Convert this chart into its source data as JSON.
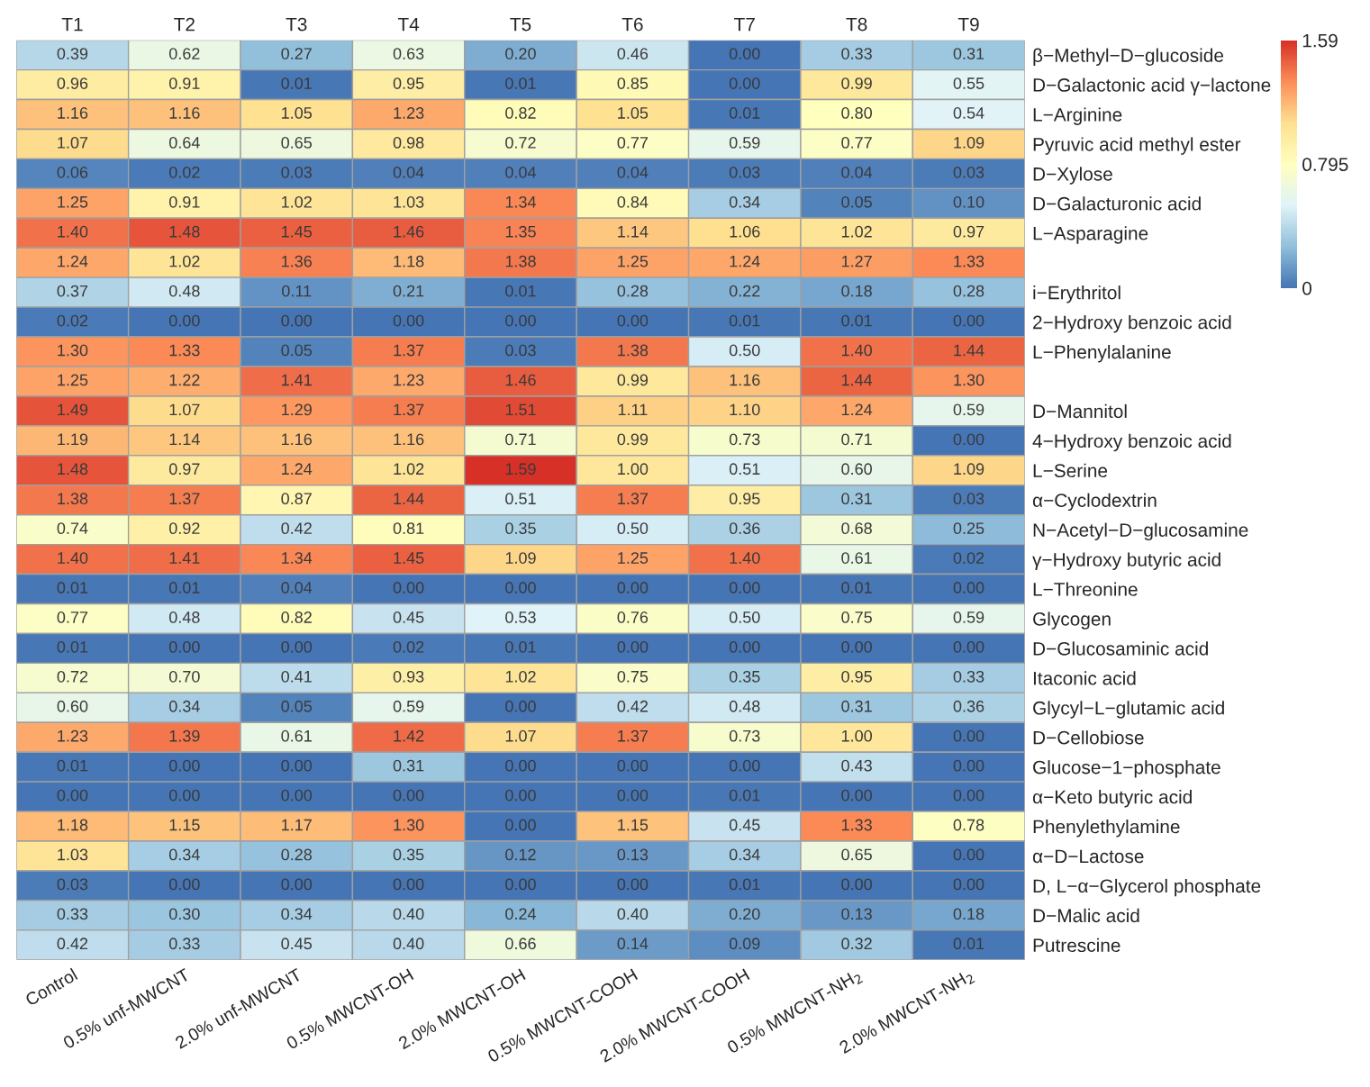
{
  "chart_data": {
    "type": "heatmap",
    "categories": [
      "Control",
      "0.5% unf-MWCNT",
      "2.0% unf-MWCNT",
      "0.5% MWCNT-OH",
      "2.0% MWCNT-OH",
      "0.5% MWCNT-COOH",
      "2.0% MWCNT-COOH",
      "0.5% MWCNT-NH$_{2}$",
      "2.0% MWCNT-NH$_{2}$"
    ],
    "annotations": [
      "T1",
      "T2",
      "T3",
      "T4",
      "T5",
      "T6",
      "T7",
      "T8",
      "T9"
    ],
    "y_categories": [
      "β−Methyl−D−glucoside",
      "D−Galactonic acid γ−lactone",
      "L−Arginine",
      "Pyruvic acid methyl ester",
      "D−Xylose",
      "D−Galacturonic acid",
      "L−Asparagine",
      null,
      "i−Erythritol",
      "2−Hydroxy benzoic acid",
      "L−Phenylalanine",
      null,
      "D−Mannitol",
      "4−Hydroxy benzoic acid",
      "L−Serine",
      "α−Cyclodextrin",
      "N−Acetyl−D−glucosamine",
      "γ−Hydroxy butyric acid",
      "L−Threonine",
      "Glycogen",
      "D−Glucosaminic acid",
      "Itaconic acid",
      "Glycyl−L−glutamic acid",
      "D−Cellobiose",
      "Glucose−1−phosphate",
      "α−Keto butyric acid",
      "Phenylethylamine",
      "α−D−Lactose",
      "D, L−α−Glycerol phosphate",
      "D−Malic acid",
      "Putrescine"
    ],
    "cells": [
      [
        0.39,
        0.62,
        0.27,
        0.63,
        0.2,
        0.46,
        0.0,
        0.33,
        0.31
      ],
      [
        0.96,
        0.91,
        0.01,
        0.95,
        0.01,
        0.85,
        0.0,
        0.99,
        0.55
      ],
      [
        1.16,
        1.16,
        1.05,
        1.23,
        0.82,
        1.05,
        0.01,
        0.8,
        0.54
      ],
      [
        1.07,
        0.64,
        0.65,
        0.98,
        0.72,
        0.77,
        0.59,
        0.77,
        1.09
      ],
      [
        0.06,
        0.02,
        0.03,
        0.04,
        0.04,
        0.04,
        0.03,
        0.04,
        0.03
      ],
      [
        1.25,
        0.91,
        1.02,
        1.03,
        1.34,
        0.84,
        0.34,
        0.05,
        0.1
      ],
      [
        1.4,
        1.48,
        1.45,
        1.46,
        1.35,
        1.14,
        1.06,
        1.02,
        0.97
      ],
      [
        1.24,
        1.02,
        1.36,
        1.18,
        1.38,
        1.25,
        1.24,
        1.27,
        1.33
      ],
      [
        0.37,
        0.48,
        0.11,
        0.21,
        0.01,
        0.28,
        0.22,
        0.18,
        0.28
      ],
      [
        0.02,
        0.0,
        0.0,
        0.0,
        0.0,
        0.0,
        0.01,
        0.01,
        0.0
      ],
      [
        1.3,
        1.33,
        0.05,
        1.37,
        0.03,
        1.38,
        0.5,
        1.4,
        1.44
      ],
      [
        1.25,
        1.22,
        1.41,
        1.23,
        1.46,
        0.99,
        1.16,
        1.44,
        1.3
      ],
      [
        1.49,
        1.07,
        1.29,
        1.37,
        1.51,
        1.11,
        1.1,
        1.24,
        0.59
      ],
      [
        1.19,
        1.14,
        1.16,
        1.16,
        0.71,
        0.99,
        0.73,
        0.71,
        0.0
      ],
      [
        1.48,
        0.97,
        1.24,
        1.02,
        1.59,
        1.0,
        0.51,
        0.6,
        1.09
      ],
      [
        1.38,
        1.37,
        0.87,
        1.44,
        0.51,
        1.37,
        0.95,
        0.31,
        0.03
      ],
      [
        0.74,
        0.92,
        0.42,
        0.81,
        0.35,
        0.5,
        0.36,
        0.68,
        0.25
      ],
      [
        1.4,
        1.41,
        1.34,
        1.45,
        1.09,
        1.25,
        1.4,
        0.61,
        0.02
      ],
      [
        0.01,
        0.01,
        0.04,
        0.0,
        0.0,
        0.0,
        0.0,
        0.01,
        0.0
      ],
      [
        0.77,
        0.48,
        0.82,
        0.45,
        0.53,
        0.76,
        0.5,
        0.75,
        0.59
      ],
      [
        0.01,
        0.0,
        0.0,
        0.02,
        0.01,
        0.0,
        0.0,
        0.0,
        0.0
      ],
      [
        0.72,
        0.7,
        0.41,
        0.93,
        1.02,
        0.75,
        0.35,
        0.95,
        0.33
      ],
      [
        0.6,
        0.34,
        0.05,
        0.59,
        0.0,
        0.42,
        0.48,
        0.31,
        0.36
      ],
      [
        1.23,
        1.39,
        0.61,
        1.42,
        1.07,
        1.37,
        0.73,
        1.0,
        0.0
      ],
      [
        0.01,
        0.0,
        0.0,
        0.31,
        0.0,
        0.0,
        0.0,
        0.43,
        0.0
      ],
      [
        0.0,
        0.0,
        0.0,
        0.0,
        0.0,
        0.0,
        0.01,
        0.0,
        0.0
      ],
      [
        1.18,
        1.15,
        1.17,
        1.3,
        0.0,
        1.15,
        0.45,
        1.33,
        0.78
      ],
      [
        1.03,
        0.34,
        0.28,
        0.35,
        0.12,
        0.13,
        0.34,
        0.65,
        0.0
      ],
      [
        0.03,
        0.0,
        0.0,
        0.0,
        0.0,
        0.0,
        0.01,
        0.0,
        0.0
      ],
      [
        0.33,
        0.3,
        0.34,
        0.4,
        0.24,
        0.4,
        0.2,
        0.13,
        0.18
      ],
      [
        0.42,
        0.33,
        0.45,
        0.4,
        0.66,
        0.14,
        0.09,
        0.32,
        0.01
      ]
    ],
    "cell_labels": [
      [
        "0.39",
        "0.62",
        "0.27",
        "0.63",
        "0.20",
        "0.46",
        "0.00",
        "0.33",
        "0.31"
      ],
      [
        "0.96",
        "0.91",
        "0.01",
        "0.95",
        "0.01",
        "0.85",
        "0.00",
        "0.99",
        "0.55"
      ],
      [
        "1.16",
        "1.16",
        "1.05",
        "1.23",
        "0.82",
        "1.05",
        "0.01",
        "0.80",
        "0.54"
      ],
      [
        "1.07",
        "0.64",
        "0.65",
        "0.98",
        "0.72",
        "0.77",
        "0.59",
        "0.77",
        "1.09"
      ],
      [
        "0.06",
        "0.02",
        "0.03",
        "0.04",
        "0.04",
        "0.04",
        "0.03",
        "0.04",
        "0.03"
      ],
      [
        "1.25",
        "0.91",
        "1.02",
        "1.03",
        "1.34",
        "0.84",
        "0.34",
        "0.05",
        "0.10"
      ],
      [
        "1.40",
        "1.48",
        "1.45",
        "1.46",
        "1.35",
        "1.14",
        "1.06",
        "1.02",
        "0.97"
      ],
      [
        "1.24",
        "1.02",
        "1.36",
        "1.18",
        "1.38",
        "1.25",
        "1.24",
        "1.27",
        "1.33"
      ],
      [
        "0.37",
        "0.48",
        "0.11",
        "0.21",
        "0.01",
        "0.28",
        "0.22",
        "0.18",
        "0.28"
      ],
      [
        "0.02",
        "0.00",
        "0.00",
        "0.00",
        "0.00",
        "0.00",
        "0.01",
        "0.01",
        "0.00"
      ],
      [
        "1.30",
        "1.33",
        "0.05",
        "1.37",
        "0.03",
        "1.38",
        "0.50",
        "1.40",
        "1.44"
      ],
      [
        "1.25",
        "1.22",
        "1.41",
        "1.23",
        "1.46",
        "0.99",
        "1.16",
        "1.44",
        "1.30"
      ],
      [
        "1.49",
        "1.07",
        "1.29",
        "1.37",
        "1.51",
        "1.11",
        "1.10",
        "1.24",
        "0.59"
      ],
      [
        "1.19",
        "1.14",
        "1.16",
        "1.16",
        "0.71",
        "0.99",
        "0.73",
        "0.71",
        "0.00"
      ],
      [
        "1.48",
        "0.97",
        "1.24",
        "1.02",
        "1.59",
        "1.00",
        "0.51",
        "0.60",
        "1.09"
      ],
      [
        "1.38",
        "1.37",
        "0.87",
        "1.44",
        "0.51",
        "1.37",
        "0.95",
        "0.31",
        "0.03"
      ],
      [
        "0.74",
        "0.92",
        "0.42",
        "0.81",
        "0.35",
        "0.50",
        "0.36",
        "0.68",
        "0.25"
      ],
      [
        "1.40",
        "1.41",
        "1.34",
        "1.45",
        "1.09",
        "1.25",
        "1.40",
        "0.61",
        "0.02"
      ],
      [
        "0.01",
        "0.01",
        "0.04",
        "0.00",
        "0.00",
        "0.00",
        "0.00",
        "0.01",
        "0.00"
      ],
      [
        "0.77",
        "0.48",
        "0.82",
        "0.45",
        "0.53",
        "0.76",
        "0.50",
        "0.75",
        "0.59"
      ],
      [
        "0.01",
        "0.00",
        "0.00",
        "0.02",
        "0.01",
        "0.00",
        "0.00",
        "0.00",
        "0.00"
      ],
      [
        "0.72",
        "0.70",
        "0.41",
        "0.93",
        "1.02",
        "0.75",
        "0.35",
        "0.95",
        "0.33"
      ],
      [
        "0.60",
        "0.34",
        "0.05",
        "0.59",
        "0.00",
        "0.42",
        "0.48",
        "0.31",
        "0.36"
      ],
      [
        "1.23",
        "1.39",
        "0.61",
        "1.42",
        "1.07",
        "1.37",
        "0.73",
        "1.00",
        "0.00"
      ],
      [
        "0.01",
        "0.00",
        "0.00",
        "0.31",
        "0.00",
        "0.00",
        "0.00",
        "0.43",
        "0.00"
      ],
      [
        "0.00",
        "0.00",
        "0.00",
        "0.00",
        "0.00",
        "0.00",
        "0.01",
        "0.00",
        "0.00"
      ],
      [
        "1.18",
        "1.15",
        "1.17",
        "1.30",
        "0.00",
        "1.15",
        "0.45",
        "1.33",
        "0.78"
      ],
      [
        "1.03",
        "0.34",
        "0.28",
        "0.35",
        "0.12",
        "0.13",
        "0.34",
        "0.65",
        "0.00"
      ],
      [
        "0.03",
        "0.00",
        "0.00",
        "0.00",
        "0.00",
        "0.00",
        "0.01",
        "0.00",
        "0.00"
      ],
      [
        "0.33",
        "0.30",
        "0.34",
        "0.40",
        "0.24",
        "0.40",
        "0.20",
        "0.13",
        "0.18"
      ],
      [
        "0.42",
        "0.33",
        "0.45",
        "0.40",
        "0.66",
        "0.14",
        "0.09",
        "0.32",
        "0.01"
      ]
    ],
    "data_labels": true,
    "clim": [
      0,
      1.59
    ],
    "cticks": [
      0,
      0.795,
      1.59
    ]
  }
}
